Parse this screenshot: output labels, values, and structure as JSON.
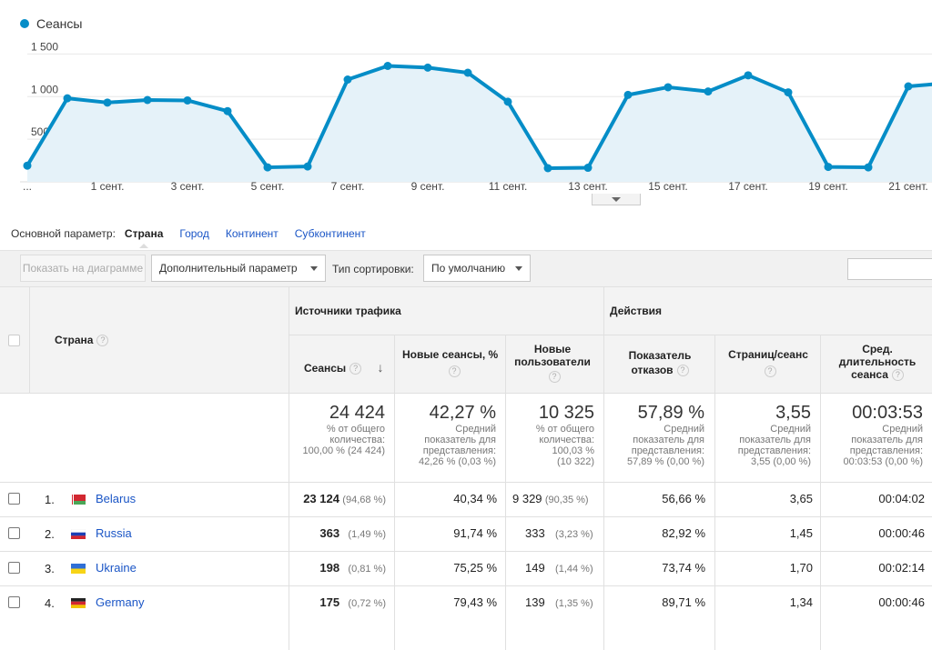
{
  "chart_data": {
    "type": "area",
    "series": [
      {
        "name": "Сеансы",
        "values": [
          190,
          980,
          930,
          960,
          955,
          830,
          170,
          180,
          1200,
          1360,
          1340,
          1280,
          940,
          160,
          165,
          1020,
          1110,
          1060,
          1250,
          1050,
          175,
          170,
          1120,
          1160
        ],
        "color": "#058dc7"
      }
    ],
    "x_tick_labels": [
      "...",
      "1 сент.",
      "3 сент.",
      "5 сент.",
      "7 сент.",
      "9 сент.",
      "11 сент.",
      "13 сент.",
      "15 сент.",
      "17 сент.",
      "19 сент.",
      "21 сент."
    ],
    "y_tick_labels": [
      "500",
      "1 000",
      "1 500"
    ],
    "ylim": [
      0,
      1600
    ],
    "grid": true
  },
  "legend": {
    "label": "Сеансы",
    "color": "#058dc7"
  },
  "dimensions": {
    "label": "Основной параметр:",
    "active": "Страна",
    "links": [
      "Город",
      "Континент",
      "Субконтинент"
    ]
  },
  "toolbar": {
    "plot_button": "Показать на диаграмме",
    "secondary_dimension": "Дополнительный параметр",
    "sort_label": "Тип сортировки:",
    "sort_value": "По умолчанию"
  },
  "table": {
    "col_country": "Страна",
    "group_traffic": "Источники трафика",
    "group_actions": "Действия",
    "h_sessions": "Сеансы",
    "h_new_sessions": "Новые сеансы, %",
    "h_new_users_1": "Новые",
    "h_new_users_2": "пользователи",
    "h_bounce_1": "Показатель",
    "h_bounce_2": "отказов",
    "h_pages": "Страниц/сеанс",
    "h_duration_1": "Сред.",
    "h_duration_2": "длительность",
    "h_duration_3": "сеанса",
    "totals": {
      "sessions": "24 424",
      "sessions_sub1": "% от общего",
      "sessions_sub2": "количества:",
      "sessions_sub3": "100,00 % (24 424)",
      "new_sessions": "42,27 %",
      "new_sessions_sub1": "Средний",
      "new_sessions_sub2": "показатель для",
      "new_sessions_sub3": "представления:",
      "new_sessions_sub4": "42,26 % (0,03 %)",
      "new_users": "10 325",
      "new_users_sub1": "% от общего",
      "new_users_sub2": "количества:",
      "new_users_sub3": "100,03 %",
      "new_users_sub4": "(10 322)",
      "bounce": "57,89 %",
      "bounce_sub1": "Средний",
      "bounce_sub2": "показатель для",
      "bounce_sub3": "представления:",
      "bounce_sub4": "57,89 % (0,00 %)",
      "pages": "3,55",
      "pages_sub1": "Средний",
      "pages_sub2": "показатель для",
      "pages_sub3": "представления:",
      "pages_sub4": "3,55 (0,00 %)",
      "duration": "00:03:53",
      "duration_sub1": "Средний",
      "duration_sub2": "показатель для",
      "duration_sub3": "представления:",
      "duration_sub4": "00:03:53 (0,00 %)"
    },
    "rows": [
      {
        "num": "1.",
        "country": "Belarus",
        "sessions": "23 124",
        "sessions_pct": "(94,68 %)",
        "new_sessions": "40,34 %",
        "new_users": "9 329",
        "new_users_pct": "(90,35 %)",
        "bounce": "56,66 %",
        "pages": "3,65",
        "duration": "00:04:02"
      },
      {
        "num": "2.",
        "country": "Russia",
        "sessions": "363",
        "sessions_pct": "(1,49 %)",
        "new_sessions": "91,74 %",
        "new_users": "333",
        "new_users_pct": "(3,23 %)",
        "bounce": "82,92 %",
        "pages": "1,45",
        "duration": "00:00:46"
      },
      {
        "num": "3.",
        "country": "Ukraine",
        "sessions": "198",
        "sessions_pct": "(0,81 %)",
        "new_sessions": "75,25 %",
        "new_users": "149",
        "new_users_pct": "(1,44 %)",
        "bounce": "73,74 %",
        "pages": "1,70",
        "duration": "00:02:14"
      },
      {
        "num": "4.",
        "country": "Germany",
        "sessions": "175",
        "sessions_pct": "(0,72 %)",
        "new_sessions": "79,43 %",
        "new_users": "139",
        "new_users_pct": "(1,35 %)",
        "bounce": "89,71 %",
        "pages": "1,34",
        "duration": "00:00:46"
      }
    ]
  }
}
